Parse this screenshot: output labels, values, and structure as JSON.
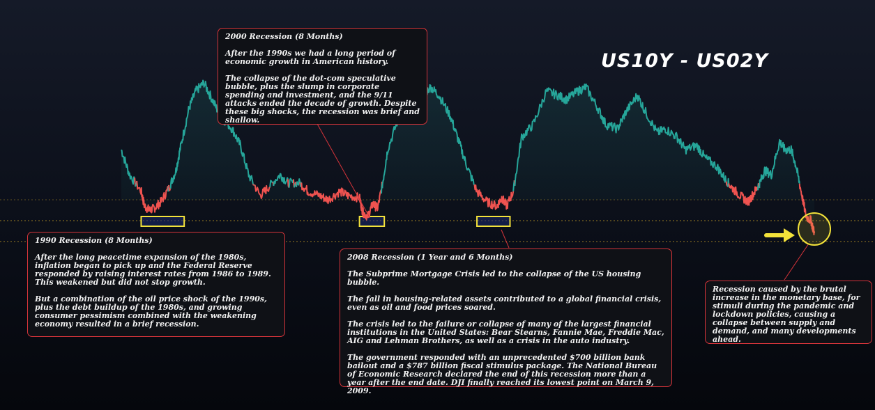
{
  "title": "US10Y - US02Y",
  "colors": {
    "positive_line": "#26a69a",
    "negative_line": "#ef5350",
    "recession_box": "#f3e23a",
    "note_border": "#d6343a",
    "reference_lines": "#c9a227",
    "arrow": "#f3e23a"
  },
  "chart_data": {
    "type": "line",
    "title": "US10Y - US02Y",
    "xlabel": "",
    "ylabel": "",
    "grid": false,
    "ylim": [
      -1.6,
      3.2
    ],
    "reference_lines": [
      0.0,
      -0.5,
      -1.0
    ],
    "series": [
      {
        "name": "",
        "x": [
          "1988-01",
          "1988-06",
          "1989-01",
          "1989-03",
          "1989-06",
          "1989-09",
          "1990-01",
          "1990-06",
          "1990-10",
          "1991-01",
          "1991-06",
          "1991-10",
          "1992-03",
          "1992-08",
          "1993-01",
          "1993-08",
          "1994-01",
          "1994-06",
          "1995-01",
          "1995-06",
          "1996-01",
          "1996-06",
          "1997-01",
          "1997-06",
          "1998-01",
          "1998-06",
          "1999-01",
          "1999-06",
          "2000-01",
          "2000-03",
          "2000-06",
          "2000-09",
          "2000-12",
          "2001-03",
          "2001-06",
          "2002-01",
          "2002-08",
          "2003-01",
          "2003-08",
          "2004-01",
          "2004-08",
          "2005-01",
          "2005-06",
          "2005-12",
          "2006-06",
          "2006-12",
          "2007-03",
          "2007-06",
          "2007-10",
          "2008-03",
          "2008-10",
          "2009-06",
          "2010-01",
          "2010-06",
          "2011-01",
          "2011-06",
          "2012-01",
          "2012-06",
          "2013-01",
          "2013-06",
          "2014-01",
          "2014-06",
          "2015-01",
          "2015-06",
          "2016-01",
          "2016-06",
          "2017-01",
          "2017-06",
          "2018-01",
          "2018-06",
          "2018-10",
          "2019-03",
          "2019-08",
          "2019-12",
          "2020-03",
          "2020-06",
          "2020-10",
          "2021-03",
          "2021-06",
          "2021-10",
          "2022-01",
          "2022-04",
          "2022-07",
          "2022-10",
          "2022-12"
        ],
        "y": [
          1.2,
          0.6,
          0.2,
          -0.15,
          -0.25,
          -0.2,
          -0.05,
          0.3,
          0.7,
          1.3,
          2.2,
          2.6,
          2.8,
          2.4,
          2.0,
          1.7,
          1.3,
          0.6,
          0.1,
          0.3,
          0.6,
          0.4,
          0.4,
          0.2,
          0.1,
          0.0,
          0.2,
          0.1,
          0.05,
          -0.3,
          -0.4,
          -0.1,
          -0.2,
          0.4,
          1.2,
          2.0,
          2.4,
          2.4,
          2.7,
          2.5,
          2.0,
          1.4,
          0.8,
          0.2,
          -0.05,
          -0.15,
          0.05,
          -0.15,
          0.2,
          1.5,
          1.8,
          2.6,
          2.5,
          2.4,
          2.6,
          2.7,
          2.2,
          1.8,
          1.7,
          2.1,
          2.5,
          2.1,
          1.6,
          1.7,
          1.5,
          1.2,
          1.3,
          1.0,
          0.8,
          0.5,
          0.3,
          0.1,
          -0.05,
          0.2,
          0.4,
          0.7,
          0.6,
          1.4,
          1.2,
          1.2,
          0.8,
          0.2,
          -0.4,
          -0.5,
          -0.8
        ]
      }
    ],
    "recessions": [
      {
        "label": "1990 Recession",
        "x": [
          "1989-01",
          "1991-03"
        ]
      },
      {
        "label": "2000 Recession",
        "x": [
          "2000-01",
          "2001-04"
        ]
      },
      {
        "label": "2008 Recession",
        "x": [
          "2005-12",
          "2007-08"
        ]
      }
    ]
  },
  "notes": {
    "n2000": {
      "heading": "2000 Recession (8 Months)",
      "p1": "After the 1990s we had a long period of economic growth in American history.",
      "p2": "   The collapse of the dot-com speculative bubble, plus the slump in corporate spending and investment, and the 9/11 attacks ended the decade of growth. Despite these big shocks, the recession was brief and shallow."
    },
    "n1990": {
      "heading": "1990 Recession (8 Months)",
      "p1": "  After the long peacetime expansion of the 1980s, inflation began to pick up and the Federal Reserve responded by raising interest rates from 1986 to 1989. This weakened but did not stop growth.",
      "p2": "But a combination of the oil price shock of the 1990s, plus the debt buildup of the 1980s, and growing consumer pessimism combined with the weakening economy resulted in a brief recession."
    },
    "n2008": {
      "heading": "2008 Recession (1 Year and 6 Months)",
      "p1": "The Subprime Mortgage Crisis led to the collapse of the US housing bubble.",
      "p2": "The fall in housing-related assets contributed to a global financial crisis, even as oil and food prices soared.",
      "p3": "   The crisis led to the failure or collapse of many of the largest financial institutions in the United States: Bear Stearns, Fannie Mae, Freddie Mac, AIG and Lehman Brothers, as well as a crisis in the auto industry.",
      "p4": "   The government responded with an unprecedented $700 billion bank bailout and a $787 billion fiscal stimulus package. The National Bureau of Economic Research declared the end of this recession more than a year after the end date. DJI finally reached its lowest point on March 9, 2009."
    },
    "ncurrent": {
      "text": "Recession caused by the brutal increase in the monetary base, for stimuli during the pandemic and lockdown policies, causing a collapse between supply and demand, and many developments ahead."
    }
  }
}
